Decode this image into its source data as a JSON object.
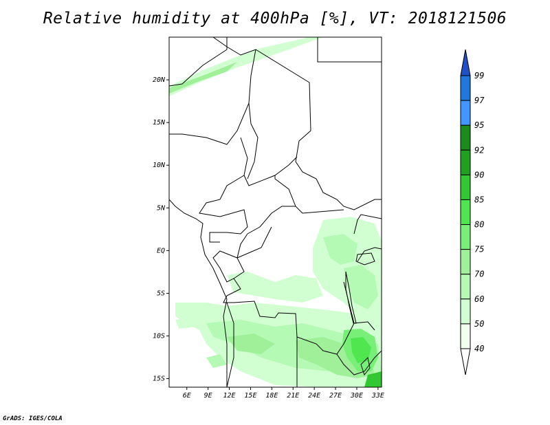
{
  "title": "Relative humidity at 400hPa [%], VT: 2018121506",
  "credit": "GrADS: IGES/COLA",
  "map": {
    "variable": "Relative humidity",
    "level": "400hPa",
    "units": "%",
    "valid_time": "2018121506",
    "lon_range": [
      3.5,
      33.5
    ],
    "lat_range": [
      -16,
      25
    ],
    "lat_ticks": [
      {
        "value": 20,
        "label": "20N"
      },
      {
        "value": 15,
        "label": "15N"
      },
      {
        "value": 10,
        "label": "10N"
      },
      {
        "value": 5,
        "label": "5N"
      },
      {
        "value": 0,
        "label": "EQ"
      },
      {
        "value": -5,
        "label": "5S"
      },
      {
        "value": -10,
        "label": "10S"
      },
      {
        "value": -15,
        "label": "15S"
      }
    ],
    "lon_ticks": [
      {
        "value": 6,
        "label": "6E"
      },
      {
        "value": 9,
        "label": "9E"
      },
      {
        "value": 12,
        "label": "12E"
      },
      {
        "value": 15,
        "label": "15E"
      },
      {
        "value": 18,
        "label": "18E"
      },
      {
        "value": 21,
        "label": "21E"
      },
      {
        "value": 24,
        "label": "24E"
      },
      {
        "value": 27,
        "label": "27E"
      },
      {
        "value": 30,
        "label": "30E"
      },
      {
        "value": 33,
        "label": "33E"
      }
    ]
  },
  "colorbar": {
    "levels": [
      "99",
      "97",
      "95",
      "92",
      "90",
      "85",
      "80",
      "75",
      "70",
      "60",
      "50",
      "40"
    ],
    "colors": [
      "#1e50c8",
      "#1f78dc",
      "#4196ff",
      "#1b8c1b",
      "#20a020",
      "#32c832",
      "#50e650",
      "#78f078",
      "#a0f09a",
      "#b4fab4",
      "#d2ffd2",
      "#f0fff0",
      "#ffffff"
    ]
  }
}
